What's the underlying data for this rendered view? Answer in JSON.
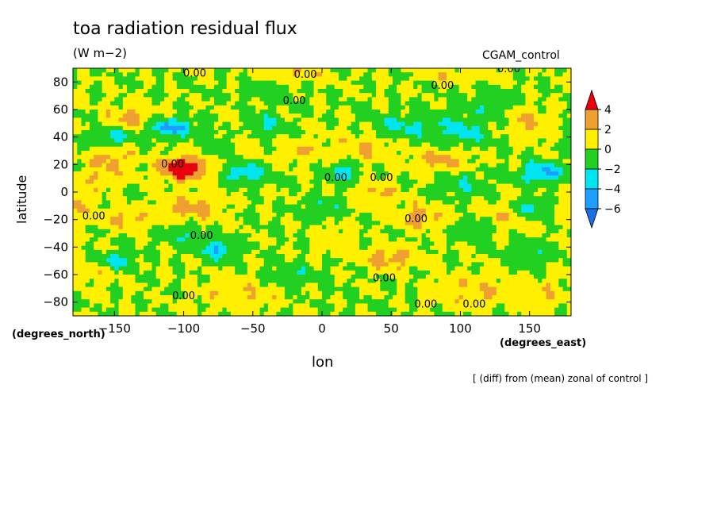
{
  "chart_data": {
    "type": "heatmap",
    "title": "toa radiation residual flux",
    "units": "(W m−2)",
    "dataset_label": "CGAM_control",
    "xlabel": "lon",
    "ylabel": "latitude",
    "x_units": "(degrees_east)",
    "y_units": "(degrees_north)",
    "footnote": "[ (diff) from (mean) zonal of control ]",
    "xlim": [
      -180,
      180
    ],
    "ylim": [
      -90,
      90
    ],
    "x_ticks": [
      -150,
      -100,
      -50,
      0,
      50,
      100,
      150
    ],
    "y_ticks": [
      80,
      60,
      40,
      20,
      0,
      -20,
      -40,
      -60,
      -80
    ],
    "x_tick_labels": [
      "−150",
      "−100",
      "−50",
      "0",
      "50",
      "100",
      "150"
    ],
    "y_tick_labels": [
      "80",
      "60",
      "40",
      "20",
      "0",
      "−20",
      "−40",
      "−60",
      "−80"
    ],
    "colorbar": {
      "levels": [
        -6,
        -4,
        -2,
        0,
        2,
        4
      ],
      "labels": [
        "4",
        "2",
        "0",
        "−2",
        "−4",
        "−6"
      ],
      "colors": {
        "below_-6": "#1a6fe8",
        "-6_-4": "#1e9fff",
        "-4_-2": "#00e5f0",
        "-2_0": "#22d022",
        "0_2": "#fff000",
        "2_4": "#f0a030",
        "above_4": "#e8000c"
      }
    },
    "contour_labels": [
      {
        "text": "0.00",
        "lon": -92,
        "lat": 84
      },
      {
        "text": "0.00",
        "lon": -12,
        "lat": 83
      },
      {
        "text": "0.00",
        "lon": 135,
        "lat": 87
      },
      {
        "text": "0.00",
        "lon": 87,
        "lat": 75
      },
      {
        "text": "0.00",
        "lon": -20,
        "lat": 64
      },
      {
        "text": "0.00",
        "lon": -108,
        "lat": 18
      },
      {
        "text": "0.00",
        "lon": 10,
        "lat": 8
      },
      {
        "text": "0.00",
        "lon": 43,
        "lat": 8
      },
      {
        "text": "0.00",
        "lon": -165,
        "lat": -20
      },
      {
        "text": "0.00",
        "lon": -87,
        "lat": -34
      },
      {
        "text": "0.00",
        "lon": 68,
        "lat": -22
      },
      {
        "text": "0.00",
        "lon": 45,
        "lat": -65
      },
      {
        "text": "0.00",
        "lon": -100,
        "lat": -78
      },
      {
        "text": "0.00",
        "lon": 75,
        "lat": -84
      },
      {
        "text": "0.00",
        "lon": 110,
        "lat": -84
      }
    ],
    "field_anomalies": [
      {
        "lon": -100,
        "lat": 17,
        "amp": 6.5,
        "sx": 12,
        "sy": 6
      },
      {
        "lon": -138,
        "lat": 53,
        "amp": 3.0,
        "sx": 12,
        "sy": 6
      },
      {
        "lon": -150,
        "lat": 27,
        "amp": 2.2,
        "sx": 10,
        "sy": 6
      },
      {
        "lon": -160,
        "lat": 14,
        "amp": 1.8,
        "sx": 14,
        "sy": 8
      },
      {
        "lon": -95,
        "lat": -12,
        "amp": 3.0,
        "sx": 14,
        "sy": 7
      },
      {
        "lon": -140,
        "lat": -20,
        "amp": 2.5,
        "sx": 12,
        "sy": 6
      },
      {
        "lon": -175,
        "lat": -8,
        "amp": 2.0,
        "sx": 8,
        "sy": 8
      },
      {
        "lon": 50,
        "lat": -48,
        "amp": 3.0,
        "sx": 14,
        "sy": 6
      },
      {
        "lon": 70,
        "lat": -18,
        "amp": 2.8,
        "sx": 12,
        "sy": 6
      },
      {
        "lon": 40,
        "lat": 0,
        "amp": 2.5,
        "sx": 10,
        "sy": 6
      },
      {
        "lon": 85,
        "lat": 24,
        "amp": 2.5,
        "sx": 14,
        "sy": 6
      },
      {
        "lon": -15,
        "lat": 30,
        "amp": 2.0,
        "sx": 12,
        "sy": 6
      },
      {
        "lon": 30,
        "lat": 32,
        "amp": 2.2,
        "sx": 12,
        "sy": 8
      },
      {
        "lon": 148,
        "lat": 50,
        "amp": 2.2,
        "sx": 12,
        "sy": 8
      },
      {
        "lon": 130,
        "lat": -20,
        "amp": 2.0,
        "sx": 16,
        "sy": 8
      },
      {
        "lon": -160,
        "lat": -55,
        "amp": 1.8,
        "sx": 14,
        "sy": 8
      },
      {
        "lon": -60,
        "lat": -75,
        "amp": 1.8,
        "sx": 20,
        "sy": 8
      },
      {
        "lon": 110,
        "lat": -72,
        "amp": 2.0,
        "sx": 22,
        "sy": 8
      },
      {
        "lon": -20,
        "lat": 85,
        "amp": 1.8,
        "sx": 20,
        "sy": 4
      },
      {
        "lon": 100,
        "lat": 85,
        "amp": 1.8,
        "sx": 20,
        "sy": 4
      },
      {
        "lon": 160,
        "lat": -75,
        "amp": 1.5,
        "sx": 12,
        "sy": 8
      },
      {
        "lon": -60,
        "lat": 38,
        "amp": 1.6,
        "sx": 10,
        "sy": 8
      },
      {
        "lon": 10,
        "lat": -35,
        "amp": 1.5,
        "sx": 10,
        "sy": 8
      },
      {
        "lon": -110,
        "lat": 47,
        "amp": -4.5,
        "sx": 12,
        "sy": 5
      },
      {
        "lon": -150,
        "lat": 40,
        "amp": -3.0,
        "sx": 10,
        "sy": 5
      },
      {
        "lon": -55,
        "lat": 14,
        "amp": -4.0,
        "sx": 10,
        "sy": 5
      },
      {
        "lon": -72,
        "lat": 35,
        "amp": -2.5,
        "sx": 8,
        "sy": 6
      },
      {
        "lon": 15,
        "lat": 14,
        "amp": -3.5,
        "sx": 8,
        "sy": 5
      },
      {
        "lon": 55,
        "lat": 48,
        "amp": -2.5,
        "sx": 14,
        "sy": 6
      },
      {
        "lon": 160,
        "lat": 14,
        "amp": -4.5,
        "sx": 12,
        "sy": 5
      },
      {
        "lon": -42,
        "lat": 48,
        "amp": -2.5,
        "sx": 10,
        "sy": 6
      },
      {
        "lon": -150,
        "lat": -50,
        "amp": -4.0,
        "sx": 10,
        "sy": 5
      },
      {
        "lon": -75,
        "lat": -42,
        "amp": -4.0,
        "sx": 8,
        "sy": 5
      },
      {
        "lon": 150,
        "lat": -12,
        "amp": -3.0,
        "sx": 8,
        "sy": 5
      },
      {
        "lon": 115,
        "lat": -25,
        "amp": -2.2,
        "sx": 10,
        "sy": 6
      },
      {
        "lon": 100,
        "lat": 45,
        "amp": -2.5,
        "sx": 16,
        "sy": 8
      },
      {
        "lon": -100,
        "lat": -30,
        "amp": -1.8,
        "sx": 12,
        "sy": 6
      },
      {
        "lon": 0,
        "lat": -12,
        "amp": -1.8,
        "sx": 10,
        "sy": 6
      },
      {
        "lon": 100,
        "lat": 5,
        "amp": -1.8,
        "sx": 12,
        "sy": 6
      },
      {
        "lon": -20,
        "lat": -60,
        "amp": -1.5,
        "sx": 16,
        "sy": 6
      },
      {
        "lon": 150,
        "lat": -45,
        "amp": -1.5,
        "sx": 12,
        "sy": 8
      },
      {
        "lon": 120,
        "lat": 65,
        "amp": -1.5,
        "sx": 14,
        "sy": 6
      },
      {
        "lon": -40,
        "lat": 75,
        "amp": -1.5,
        "sx": 14,
        "sy": 5
      }
    ]
  }
}
